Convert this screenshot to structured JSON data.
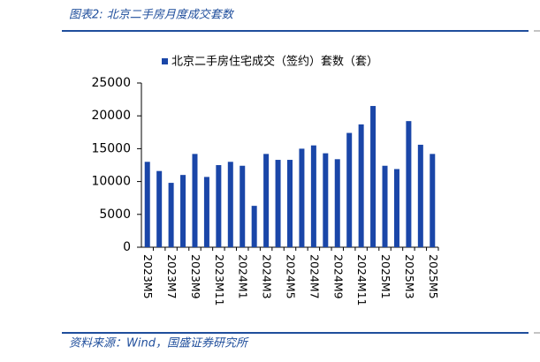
{
  "chart_data": {
    "type": "bar",
    "title": "图表2:  北京二手房月度成交套数",
    "source": "资料来源：Wind，国盛证券研究所",
    "categories": [
      "2023M5",
      null,
      "2023M7",
      null,
      "2023M9",
      null,
      "2023M11",
      null,
      "2024M1",
      null,
      "2024M3",
      null,
      "2024M5",
      null,
      "2024M7",
      null,
      "2024M9",
      null,
      "2024M11",
      null,
      "2025M1",
      null,
      "2025M3",
      null,
      "2025M5"
    ],
    "series": [
      {
        "name": "北京二手房住宅成交（签约）套数（套）",
        "color": "#1a46a8",
        "values": [
          13000,
          11600,
          9800,
          11000,
          14200,
          10700,
          12500,
          13000,
          12400,
          6300,
          14200,
          13300,
          13300,
          15000,
          15500,
          14300,
          13400,
          17400,
          18700,
          21500,
          12400,
          11900,
          19200,
          15600,
          14200
        ]
      }
    ],
    "ylim": [
      0,
      25000
    ],
    "yticks": [
      0,
      5000,
      10000,
      15000,
      20000,
      25000
    ]
  }
}
